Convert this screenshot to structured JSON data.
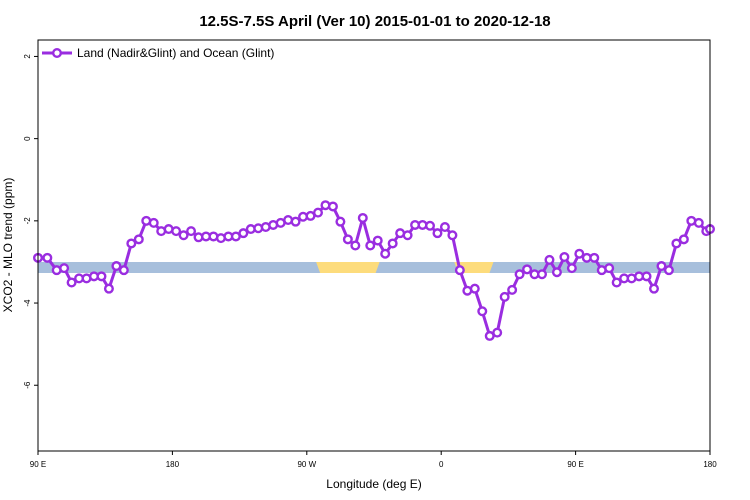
{
  "chart_data": {
    "type": "line",
    "title": "12.5S-7.5S April (Ver 10)   2015-01-01 to 2020-12-18",
    "xlabel": "Longitude (deg E)",
    "ylabel": "XCO2 - MLO trend (ppm)",
    "xlim": [
      90,
      450
    ],
    "ylim": [
      -7.6,
      2.4
    ],
    "x_ticks": [
      {
        "value": 90,
        "label": "90 E"
      },
      {
        "value": 162,
        "label": "180"
      },
      {
        "value": 234,
        "label": "90 W"
      },
      {
        "value": 306,
        "label": "0"
      },
      {
        "value": 378,
        "label": "90 E"
      },
      {
        "value": 450,
        "label": "180"
      }
    ],
    "y_ticks": [
      {
        "value": 2,
        "label": "2"
      },
      {
        "value": 0,
        "label": "0"
      },
      {
        "value": -2,
        "label": "-2"
      },
      {
        "value": -4,
        "label": "-4"
      },
      {
        "value": -6,
        "label": "-6"
      }
    ],
    "legend": {
      "position": "top-left",
      "label": "Land (Nadir&Glint) and Ocean (Glint)"
    },
    "colors": {
      "series": "#9a2de0",
      "ocean": "#a7bfdc",
      "land": "#fddc7c"
    },
    "land_segments": [
      [
        239,
        273
      ],
      [
        313,
        334
      ]
    ],
    "series": [
      {
        "name": "Land (Nadir&Glint) and Ocean (Glint)",
        "x": [
          90,
          95,
          100,
          104,
          108,
          112,
          116,
          120,
          124,
          128,
          132,
          136,
          140,
          144,
          148,
          152,
          156,
          160,
          164,
          168,
          172,
          176,
          180,
          184,
          188,
          192,
          196,
          200,
          204,
          208,
          212,
          216,
          220,
          224,
          228,
          232,
          236,
          240,
          244,
          248,
          252,
          256,
          260,
          264,
          268,
          272,
          276,
          280,
          284,
          288,
          292,
          296,
          300,
          304,
          308,
          312,
          316,
          320,
          324,
          328,
          332,
          336,
          340,
          344,
          348,
          352,
          356,
          360,
          364,
          368,
          372,
          376,
          380,
          384,
          388,
          392,
          396,
          400,
          404,
          408,
          412,
          416,
          420,
          424,
          428,
          432,
          436,
          440,
          444,
          448,
          450
        ],
        "y": [
          -2.9,
          -2.9,
          -3.2,
          -3.15,
          -3.5,
          -3.4,
          -3.4,
          -3.35,
          -3.35,
          -3.65,
          -3.1,
          -3.2,
          -2.55,
          -2.45,
          -2.0,
          -2.05,
          -2.25,
          -2.2,
          -2.25,
          -2.35,
          -2.25,
          -2.4,
          -2.38,
          -2.38,
          -2.42,
          -2.38,
          -2.38,
          -2.3,
          -2.2,
          -2.18,
          -2.15,
          -2.1,
          -2.05,
          -1.98,
          -2.02,
          -1.9,
          -1.88,
          -1.8,
          -1.62,
          -1.65,
          -2.02,
          -2.45,
          -2.6,
          -1.93,
          -2.6,
          -2.48,
          -2.8,
          -2.55,
          -2.3,
          -2.35,
          -2.1,
          -2.1,
          -2.12,
          -2.3,
          -2.15,
          -2.35,
          -3.2,
          -3.7,
          -3.65,
          -4.2,
          -4.8,
          -4.72,
          -3.85,
          -3.68,
          -3.3,
          -3.18,
          -3.3,
          -3.3,
          -2.95,
          -3.25,
          -2.88,
          -3.15,
          -2.8,
          -2.9,
          -2.9,
          -3.2,
          -3.15,
          -3.5,
          -3.4,
          -3.4,
          -3.35,
          -3.35,
          -3.65,
          -3.1,
          -3.2,
          -2.55,
          -2.45,
          -2.0,
          -2.05,
          -2.25,
          -2.2
        ]
      }
    ]
  }
}
